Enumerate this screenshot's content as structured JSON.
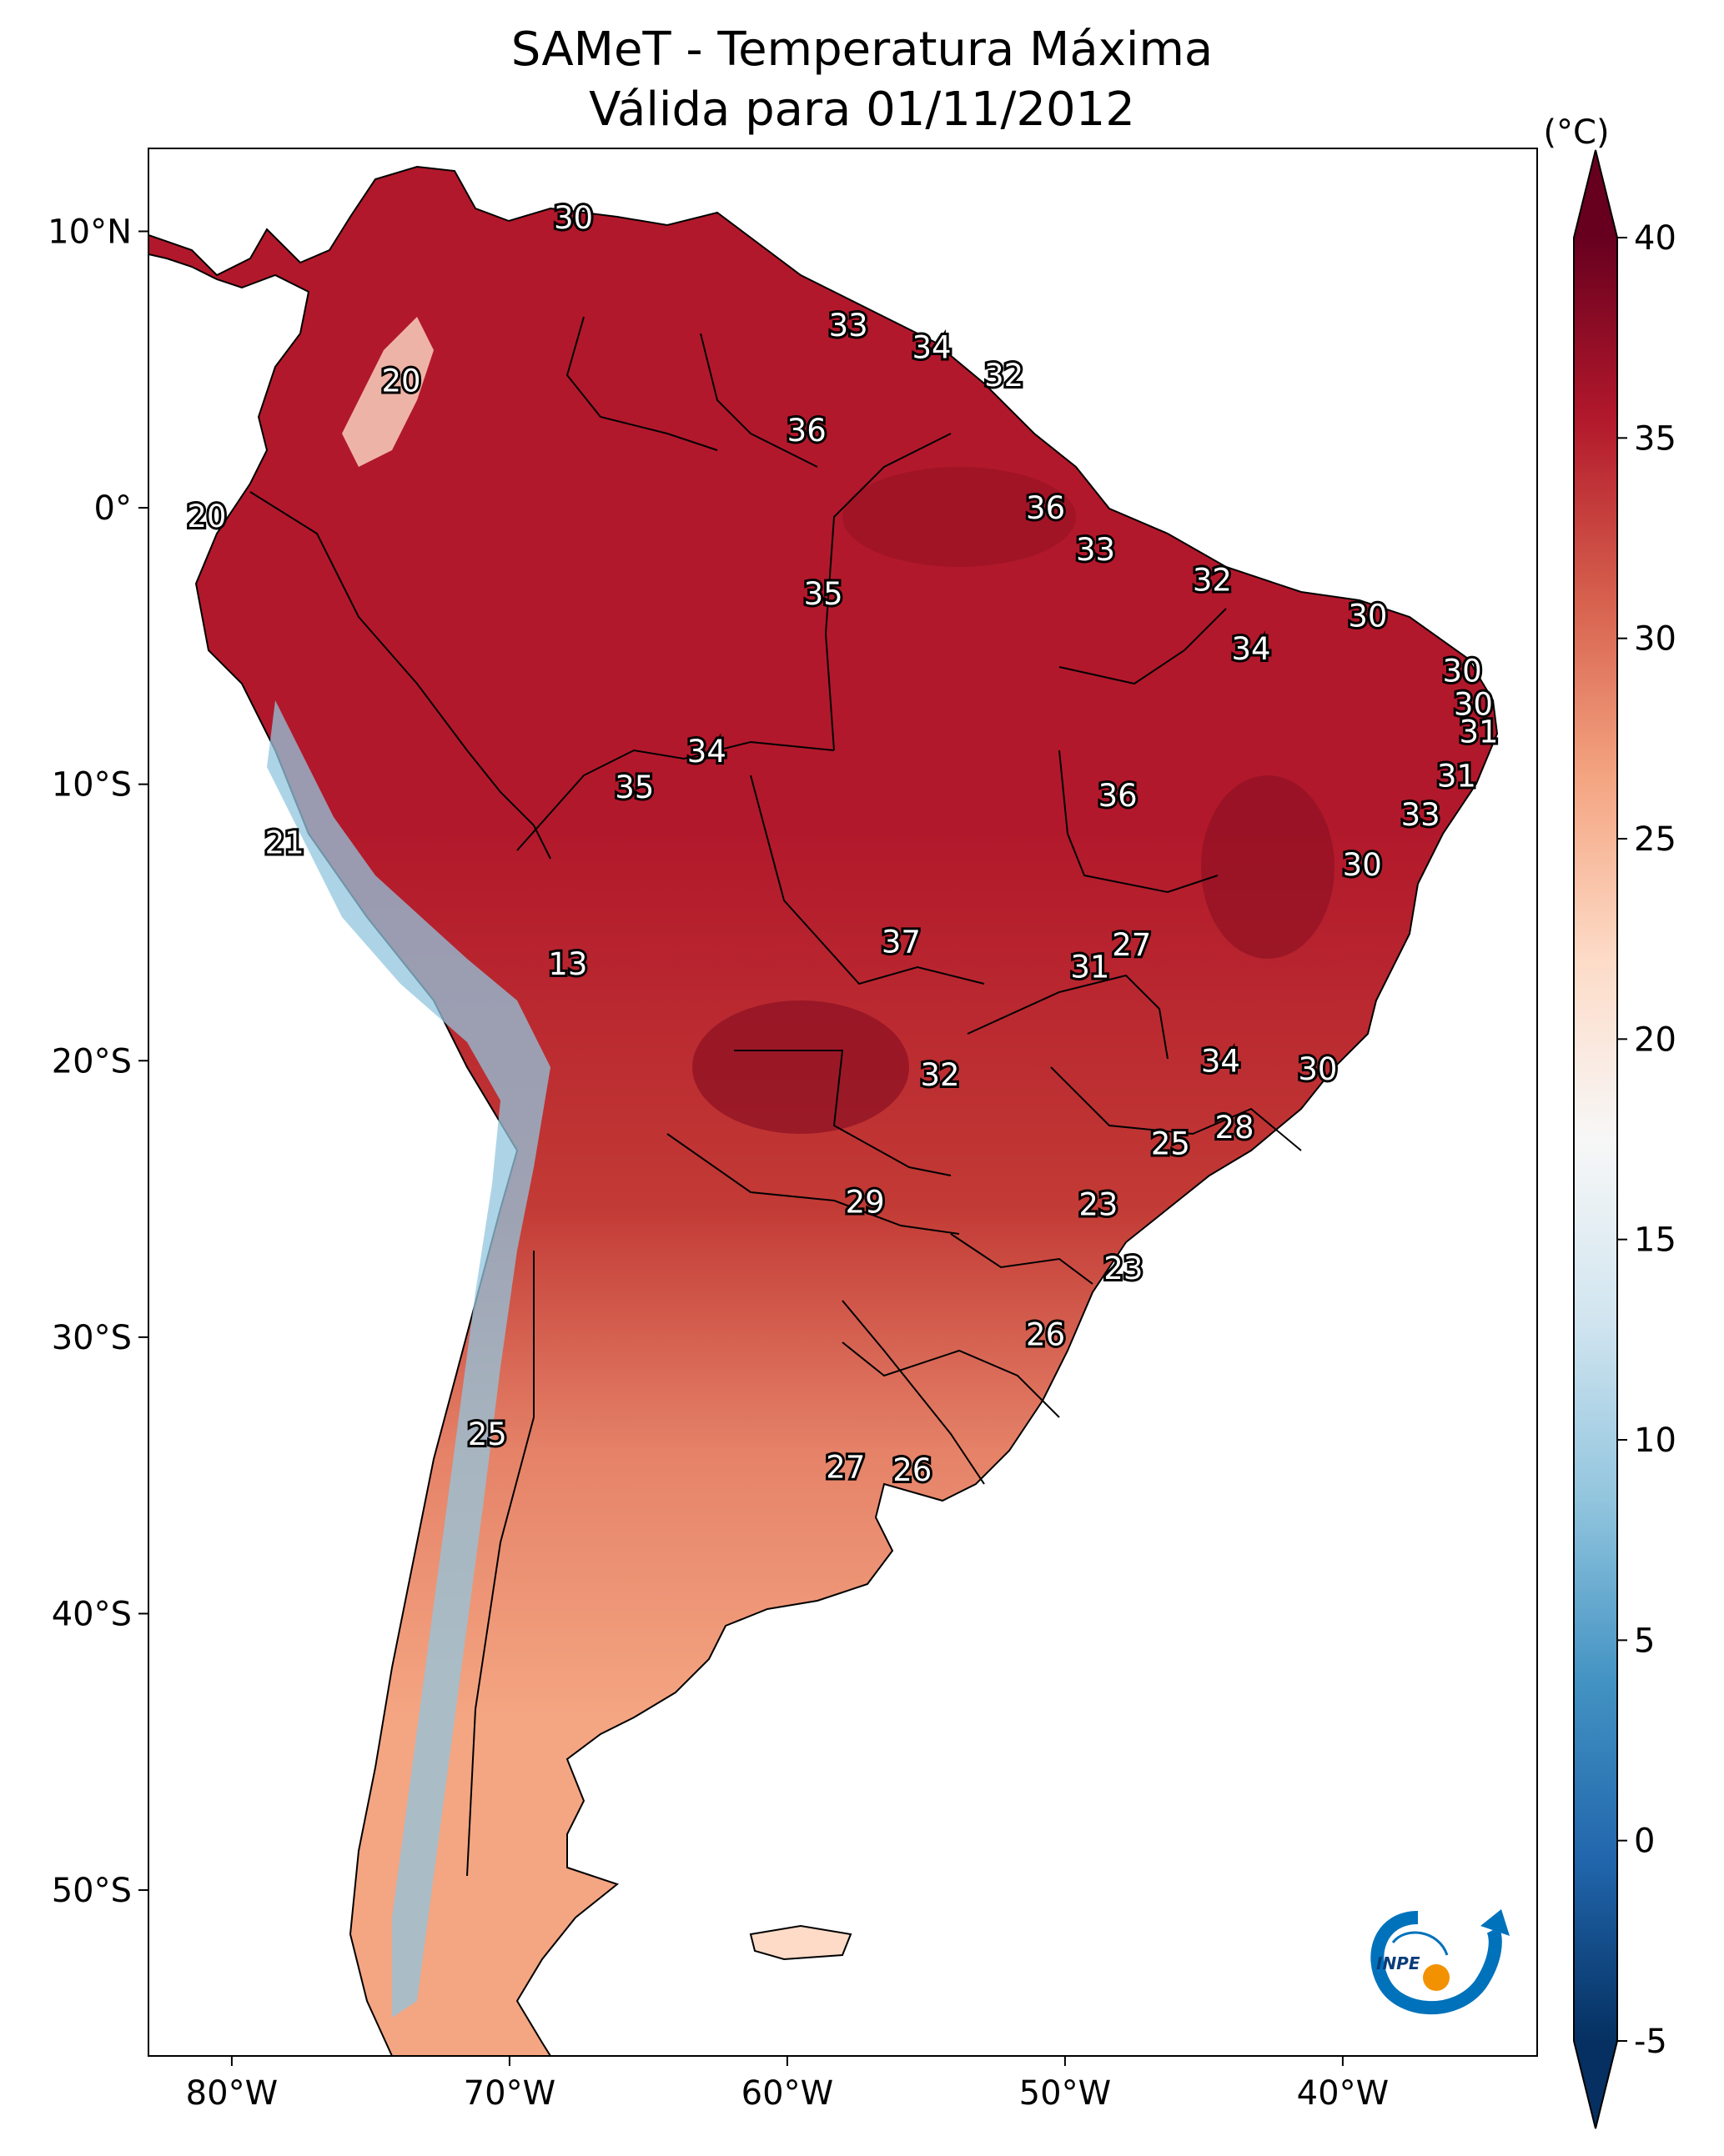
{
  "title": {
    "line1": "SAMeT - Temperatura Máxima",
    "line2": "Válida para 01/11/2012"
  },
  "map": {
    "lon_range": [
      -83,
      -33
    ],
    "lat_range": [
      -56,
      13
    ],
    "lon_ticks": [
      {
        "value": -80,
        "label": "80°W"
      },
      {
        "value": -70,
        "label": "70°W"
      },
      {
        "value": -60,
        "label": "60°W"
      },
      {
        "value": -50,
        "label": "50°W"
      },
      {
        "value": -40,
        "label": "40°W"
      }
    ],
    "lat_ticks": [
      {
        "value": 10,
        "label": "10°N"
      },
      {
        "value": 0,
        "label": "0°"
      },
      {
        "value": -10,
        "label": "10°S"
      },
      {
        "value": -20,
        "label": "20°S"
      },
      {
        "value": -30,
        "label": "30°S"
      },
      {
        "value": -40,
        "label": "40°S"
      },
      {
        "value": -50,
        "label": "50°S"
      }
    ],
    "labels": [
      {
        "lon": -67.7,
        "lat": 10.5,
        "text": "30"
      },
      {
        "lon": -57.8,
        "lat": 6.6,
        "text": "33"
      },
      {
        "lon": -54.8,
        "lat": 5.8,
        "text": "34"
      },
      {
        "lon": -52.2,
        "lat": 4.8,
        "text": "32"
      },
      {
        "lon": -59.3,
        "lat": 2.8,
        "text": "36"
      },
      {
        "lon": -73.9,
        "lat": 4.6,
        "text": "20"
      },
      {
        "lon": -50.7,
        "lat": -0.0,
        "text": "36"
      },
      {
        "lon": -80.9,
        "lat": -0.3,
        "text": "20"
      },
      {
        "lon": -48.9,
        "lat": -1.5,
        "text": "33"
      },
      {
        "lon": -44.7,
        "lat": -2.6,
        "text": "32"
      },
      {
        "lon": -58.7,
        "lat": -3.1,
        "text": "35"
      },
      {
        "lon": -39.1,
        "lat": -3.9,
        "text": "30"
      },
      {
        "lon": -43.3,
        "lat": -5.1,
        "text": "34"
      },
      {
        "lon": -35.7,
        "lat": -5.9,
        "text": "30"
      },
      {
        "lon": -35.3,
        "lat": -7.1,
        "text": "30"
      },
      {
        "lon": -35.1,
        "lat": -8.1,
        "text": "31"
      },
      {
        "lon": -62.9,
        "lat": -8.8,
        "text": "34"
      },
      {
        "lon": -35.9,
        "lat": -9.7,
        "text": "31"
      },
      {
        "lon": -65.5,
        "lat": -10.1,
        "text": "35"
      },
      {
        "lon": -48.1,
        "lat": -10.4,
        "text": "36"
      },
      {
        "lon": -37.2,
        "lat": -11.1,
        "text": "33"
      },
      {
        "lon": -78.1,
        "lat": -12.1,
        "text": "21"
      },
      {
        "lon": -39.3,
        "lat": -12.9,
        "text": "30"
      },
      {
        "lon": -55.9,
        "lat": -15.7,
        "text": "37"
      },
      {
        "lon": -47.6,
        "lat": -15.8,
        "text": "27"
      },
      {
        "lon": -49.1,
        "lat": -16.6,
        "text": "31"
      },
      {
        "lon": -67.9,
        "lat": -16.5,
        "text": "13"
      },
      {
        "lon": -44.4,
        "lat": -20.0,
        "text": "34"
      },
      {
        "lon": -40.9,
        "lat": -20.3,
        "text": "30"
      },
      {
        "lon": -54.5,
        "lat": -20.5,
        "text": "32"
      },
      {
        "lon": -43.9,
        "lat": -22.4,
        "text": "28"
      },
      {
        "lon": -46.2,
        "lat": -23.0,
        "text": "25"
      },
      {
        "lon": -57.2,
        "lat": -25.1,
        "text": "29"
      },
      {
        "lon": -48.8,
        "lat": -25.2,
        "text": "23"
      },
      {
        "lon": -47.9,
        "lat": -27.5,
        "text": "23"
      },
      {
        "lon": -50.7,
        "lat": -29.9,
        "text": "26"
      },
      {
        "lon": -70.8,
        "lat": -33.5,
        "text": "25"
      },
      {
        "lon": -57.9,
        "lat": -34.7,
        "text": "27"
      },
      {
        "lon": -55.5,
        "lat": -34.8,
        "text": "26"
      }
    ]
  },
  "colorbar": {
    "unit": "(°C)",
    "vmin": -5,
    "vmax": 40,
    "ticks": [
      {
        "value": 40,
        "label": "40"
      },
      {
        "value": 35,
        "label": "35"
      },
      {
        "value": 30,
        "label": "30"
      },
      {
        "value": 25,
        "label": "25"
      },
      {
        "value": 20,
        "label": "20"
      },
      {
        "value": 15,
        "label": "15"
      },
      {
        "value": 10,
        "label": "10"
      },
      {
        "value": 5,
        "label": "5"
      },
      {
        "value": 0,
        "label": "0"
      },
      {
        "value": -5,
        "label": "-5"
      }
    ],
    "colormap": [
      "#053061",
      "#2166ac",
      "#4393c3",
      "#92c5de",
      "#d1e5f0",
      "#f7f7f7",
      "#fddbc7",
      "#f4a582",
      "#d6604d",
      "#b2182b",
      "#67001f"
    ]
  },
  "logo": {
    "text": "INPE",
    "colors": {
      "swirl": "#0072bb",
      "dot": "#f39200"
    }
  }
}
